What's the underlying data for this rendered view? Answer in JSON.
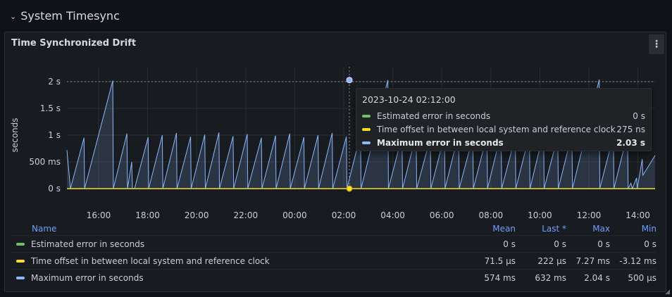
{
  "row": {
    "title": "System Timesync",
    "chevron": "⌄"
  },
  "panel": {
    "title": "Time Synchronized Drift",
    "menu_icon": "⋮"
  },
  "colors": {
    "estimated": "#73bf69",
    "offset": "#fade2a",
    "maximum": "#8ab8ff"
  },
  "chart_data": {
    "type": "line",
    "ylabel": "seconds",
    "y_ticks": [
      "0 s",
      "500 ms",
      "1 s",
      "1.5 s",
      "2 s"
    ],
    "y_tick_values": [
      0,
      0.5,
      1,
      1.5,
      2
    ],
    "ylim": [
      0,
      2.2
    ],
    "x_ticks": [
      "16:00",
      "18:00",
      "20:00",
      "22:00",
      "00:00",
      "02:00",
      "04:00",
      "06:00",
      "08:00",
      "10:00",
      "12:00",
      "14:00"
    ],
    "series": [
      {
        "name": "Estimated error in seconds",
        "color": "#73bf69",
        "values": [
          0,
          0
        ]
      },
      {
        "name": "Time offset in between local system and reference clock",
        "color": "#fade2a",
        "values": [
          7.2e-05,
          0.000222
        ]
      },
      {
        "name": "Maximum error in seconds",
        "color": "#8ab8ff",
        "peaks": [
          0.72,
          2.02,
          0.95,
          1.0,
          1.0,
          1.05,
          1.0,
          1.0,
          1.0,
          2.03,
          1.0,
          1.05,
          1.0,
          2.04,
          1.0,
          0.55,
          0.62
        ]
      }
    ]
  },
  "tooltip": {
    "time": "2023-10-24 02:12:00",
    "rows": [
      {
        "name": "Estimated error in seconds",
        "value": "0 s",
        "color": "#73bf69"
      },
      {
        "name": "Time offset in between local system and reference clock",
        "value": "275 ns",
        "color": "#fade2a"
      },
      {
        "name": "Maximum error in seconds",
        "value": "2.03 s",
        "color": "#8ab8ff"
      }
    ]
  },
  "legend": {
    "headers": {
      "name": "Name",
      "mean": "Mean",
      "last": "Last *",
      "max": "Max",
      "min": "Min"
    },
    "rows": [
      {
        "name": "Estimated error in seconds",
        "color": "#73bf69",
        "mean": "0 s",
        "last": "0 s",
        "max": "0 s",
        "min": "0 s"
      },
      {
        "name": "Time offset in between local system and reference clock",
        "color": "#fade2a",
        "mean": "71.5 µs",
        "last": "222 µs",
        "max": "7.27 ms",
        "min": "-3.12 ms"
      },
      {
        "name": "Maximum error in seconds",
        "color": "#8ab8ff",
        "mean": "574 ms",
        "last": "632 ms",
        "max": "2.04 s",
        "min": "500 µs"
      }
    ]
  }
}
